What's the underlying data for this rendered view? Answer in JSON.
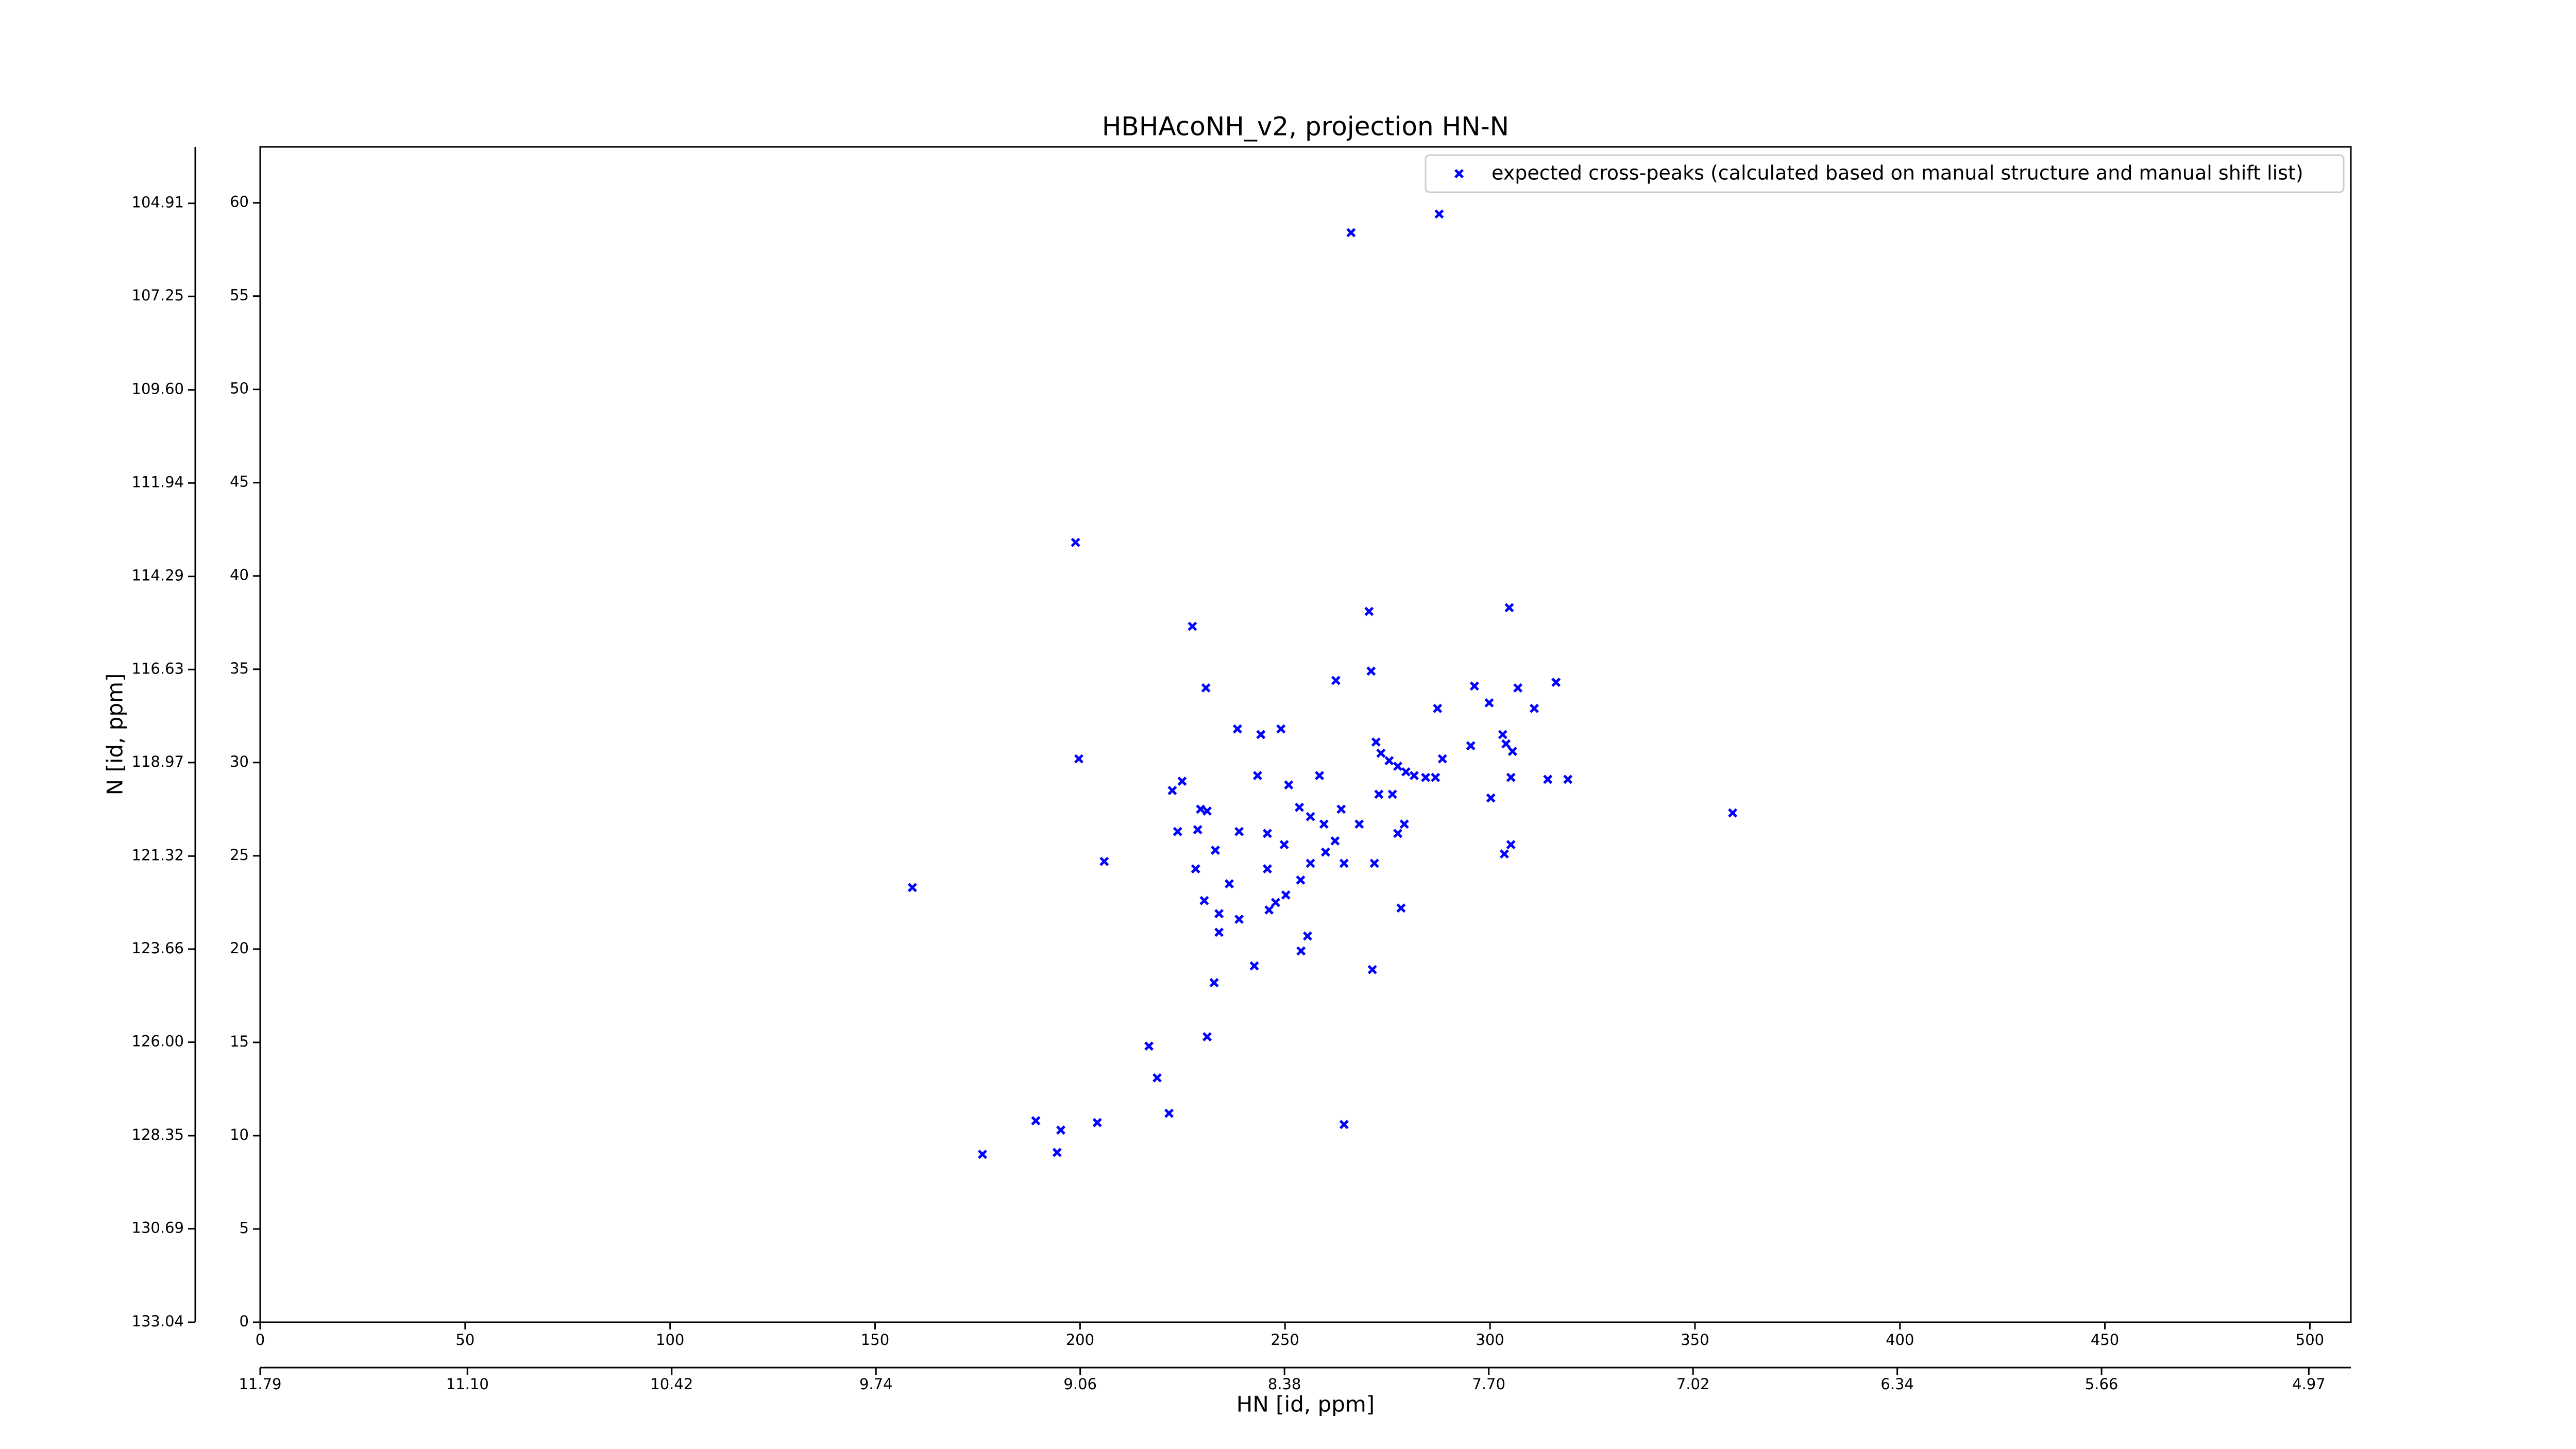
{
  "chart_data": {
    "type": "scatter",
    "title": "HBHAcoNH_v2, projection HN-N",
    "x_label": "HN [id, ppm]",
    "y_label": "N [id, ppm]",
    "legend": "upper right",
    "series": [
      {
        "name": "expected cross-peaks (calculated based on manual structure and manual shift list)",
        "color": "#0000ff",
        "x": [
          266.1,
          287.6,
          198.9,
          227.4,
          270.5,
          304.7,
          230.7,
          262.4,
          271.0,
          296.2,
          306.8,
          316.1,
          287.2,
          299.8,
          310.8,
          238.4,
          244.1,
          249.0,
          272.2,
          273.4,
          275.4,
          277.5,
          279.5,
          281.5,
          303.1,
          303.9,
          305.5,
          295.3,
          288.4,
          199.7,
          222.5,
          224.9,
          243.3,
          258.4,
          250.9,
          284.3,
          286.7,
          300.2,
          305.1,
          314.1,
          319.0,
          229.4,
          231.0,
          253.5,
          263.7,
          272.9,
          276.2,
          256.2,
          259.5,
          268.1,
          279.1,
          277.5,
          223.8,
          228.7,
          238.8,
          245.7,
          249.8,
          262.2,
          264.4,
          271.8,
          305.1,
          303.5,
          205.9,
          233.0,
          228.2,
          245.7,
          256.2,
          259.9,
          253.8,
          236.4,
          250.2,
          247.7,
          246.1,
          230.3,
          159.1,
          233.9,
          238.8,
          255.5,
          253.9,
          233.9,
          278.3,
          242.5,
          271.3,
          232.7,
          231.0,
          216.8,
          218.8,
          221.7,
          189.2,
          195.3,
          204.2,
          264.4,
          194.4,
          176.2,
          359.2
        ],
        "values": [
          58.4,
          59.4,
          41.8,
          37.3,
          38.1,
          38.3,
          34.0,
          34.4,
          34.9,
          34.1,
          34.0,
          34.3,
          32.9,
          33.2,
          32.9,
          31.8,
          31.5,
          31.8,
          31.1,
          30.5,
          30.1,
          29.8,
          29.5,
          29.3,
          31.5,
          31.0,
          30.6,
          30.9,
          30.2,
          30.2,
          28.5,
          29.0,
          29.3,
          29.3,
          28.8,
          29.2,
          29.2,
          28.1,
          29.2,
          29.1,
          29.1,
          27.5,
          27.4,
          27.6,
          27.5,
          28.3,
          28.3,
          27.1,
          26.7,
          26.7,
          26.7,
          26.2,
          26.3,
          26.4,
          26.3,
          26.2,
          25.6,
          25.8,
          24.6,
          24.6,
          25.6,
          25.1,
          24.7,
          25.3,
          24.3,
          24.3,
          24.6,
          25.2,
          23.7,
          23.5,
          22.9,
          22.5,
          22.1,
          22.6,
          23.3,
          21.9,
          21.6,
          20.7,
          19.9,
          20.9,
          22.2,
          19.1,
          18.9,
          18.2,
          15.3,
          14.8,
          13.1,
          11.2,
          10.8,
          10.3,
          10.7,
          10.6,
          9.1,
          9.0,
          27.3
        ]
      }
    ],
    "xlim": [
      0,
      510
    ],
    "xticks": [
      0,
      50,
      100,
      150,
      200,
      250,
      300,
      350,
      400,
      450,
      500
    ],
    "ylim": [
      0,
      63
    ],
    "yticks": [
      0,
      5,
      10,
      15,
      20,
      25,
      30,
      35,
      40,
      45,
      50,
      55,
      60
    ],
    "x2lim": [
      11.79,
      4.83
    ],
    "x2ticks": [
      11.79,
      {
        "value": 11.1,
        "label": "11.10"
      },
      10.42,
      9.74,
      9.06,
      8.38,
      {
        "value": 7.7,
        "label": "7.70"
      },
      7.02,
      6.34,
      5.66,
      4.97
    ],
    "y2lim": [
      133.04,
      103.49
    ],
    "y2ticks": [
      104.91,
      107.25,
      {
        "value": 109.6,
        "label": "109.60"
      },
      111.94,
      114.29,
      116.63,
      118.97,
      121.32,
      123.66,
      {
        "value": 126,
        "label": "126.00"
      },
      128.35,
      130.69,
      133.04
    ]
  }
}
